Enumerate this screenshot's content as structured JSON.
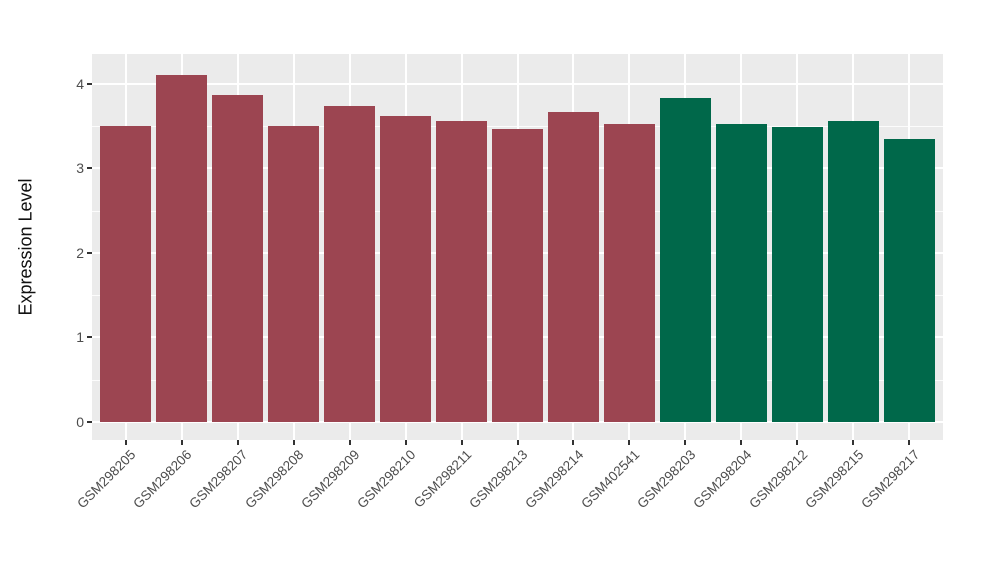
{
  "chart_data": {
    "type": "bar",
    "title": "",
    "xlabel": "",
    "ylabel": "Expression Level",
    "ylim": [
      0,
      4.3
    ],
    "yticks": [
      0,
      1,
      2,
      3,
      4
    ],
    "minor_gridlines": [
      0.5,
      1.5,
      2.5,
      3.5
    ],
    "grid": "on",
    "legend": "none",
    "panel_background": "#EBEBEB",
    "gridline_color": "#FFFFFF",
    "group_colors": {
      "maroon": "#9C4551",
      "green": "#00684A"
    },
    "categories": [
      "GSM298205",
      "GSM298206",
      "GSM298207",
      "GSM298208",
      "GSM298209",
      "GSM298210",
      "GSM298211",
      "GSM298213",
      "GSM298214",
      "GSM402541",
      "GSM298203",
      "GSM298204",
      "GSM298212",
      "GSM298215",
      "GSM298217"
    ],
    "bars": [
      {
        "label": "GSM298205",
        "value": 3.5,
        "group": "maroon"
      },
      {
        "label": "GSM298206",
        "value": 4.1,
        "group": "maroon"
      },
      {
        "label": "GSM298207",
        "value": 3.86,
        "group": "maroon"
      },
      {
        "label": "GSM298208",
        "value": 3.5,
        "group": "maroon"
      },
      {
        "label": "GSM298209",
        "value": 3.73,
        "group": "maroon"
      },
      {
        "label": "GSM298210",
        "value": 3.62,
        "group": "maroon"
      },
      {
        "label": "GSM298211",
        "value": 3.56,
        "group": "maroon"
      },
      {
        "label": "GSM298213",
        "value": 3.46,
        "group": "maroon"
      },
      {
        "label": "GSM298214",
        "value": 3.67,
        "group": "maroon"
      },
      {
        "label": "GSM402541",
        "value": 3.52,
        "group": "maroon"
      },
      {
        "label": "GSM298203",
        "value": 3.83,
        "group": "green"
      },
      {
        "label": "GSM298204",
        "value": 3.52,
        "group": "green"
      },
      {
        "label": "GSM298212",
        "value": 3.49,
        "group": "green"
      },
      {
        "label": "GSM298215",
        "value": 3.56,
        "group": "green"
      },
      {
        "label": "GSM298217",
        "value": 3.34,
        "group": "green"
      }
    ]
  }
}
